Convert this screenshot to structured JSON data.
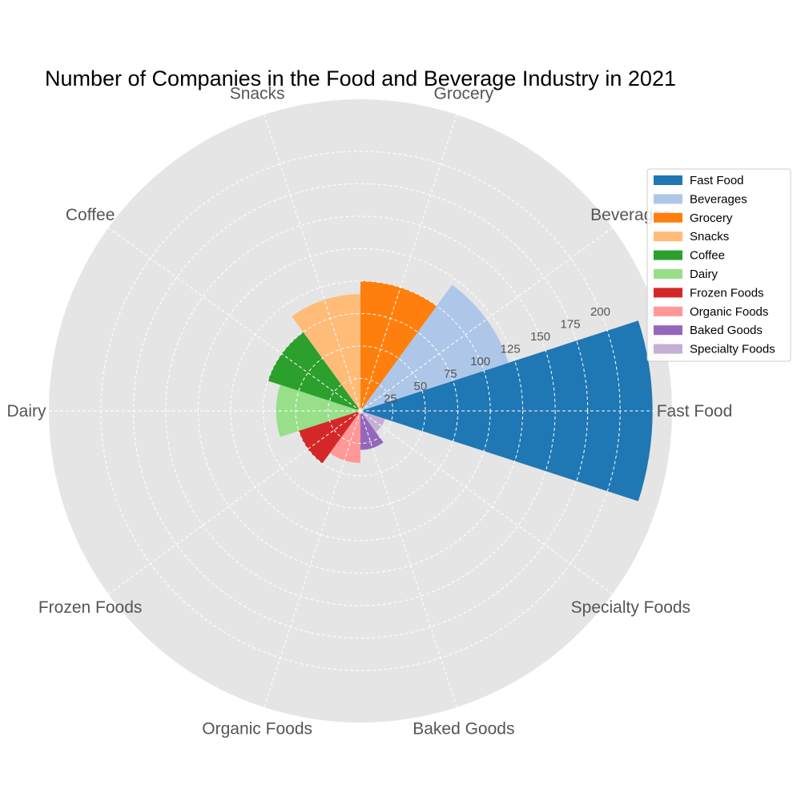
{
  "chart_data": {
    "type": "polar-bar",
    "title": "Number of Companies in the Food and Beverage Industry in 2021",
    "categories": [
      "Fast Food",
      "Beverages",
      "Grocery",
      "Snacks",
      "Coffee",
      "Dairy",
      "Frozen Foods",
      "Organic Foods",
      "Baked Goods",
      "Specialty Foods"
    ],
    "values": [
      225,
      120,
      100,
      90,
      75,
      65,
      50,
      40,
      30,
      20
    ],
    "colors": [
      "#1f77b4",
      "#aec7e8",
      "#ff7f0e",
      "#ffbb78",
      "#2ca02c",
      "#98df8a",
      "#d62728",
      "#ff9896",
      "#9467bd",
      "#c5b0d5"
    ],
    "rlim": [
      0,
      240
    ],
    "radial_ticks": [
      25,
      50,
      75,
      100,
      125,
      150,
      175,
      200
    ],
    "radial_tick_labels": [
      "25",
      "50",
      "75",
      "100",
      "125",
      "150",
      "175",
      "200"
    ],
    "grid": true,
    "legend_position": "top-right"
  }
}
